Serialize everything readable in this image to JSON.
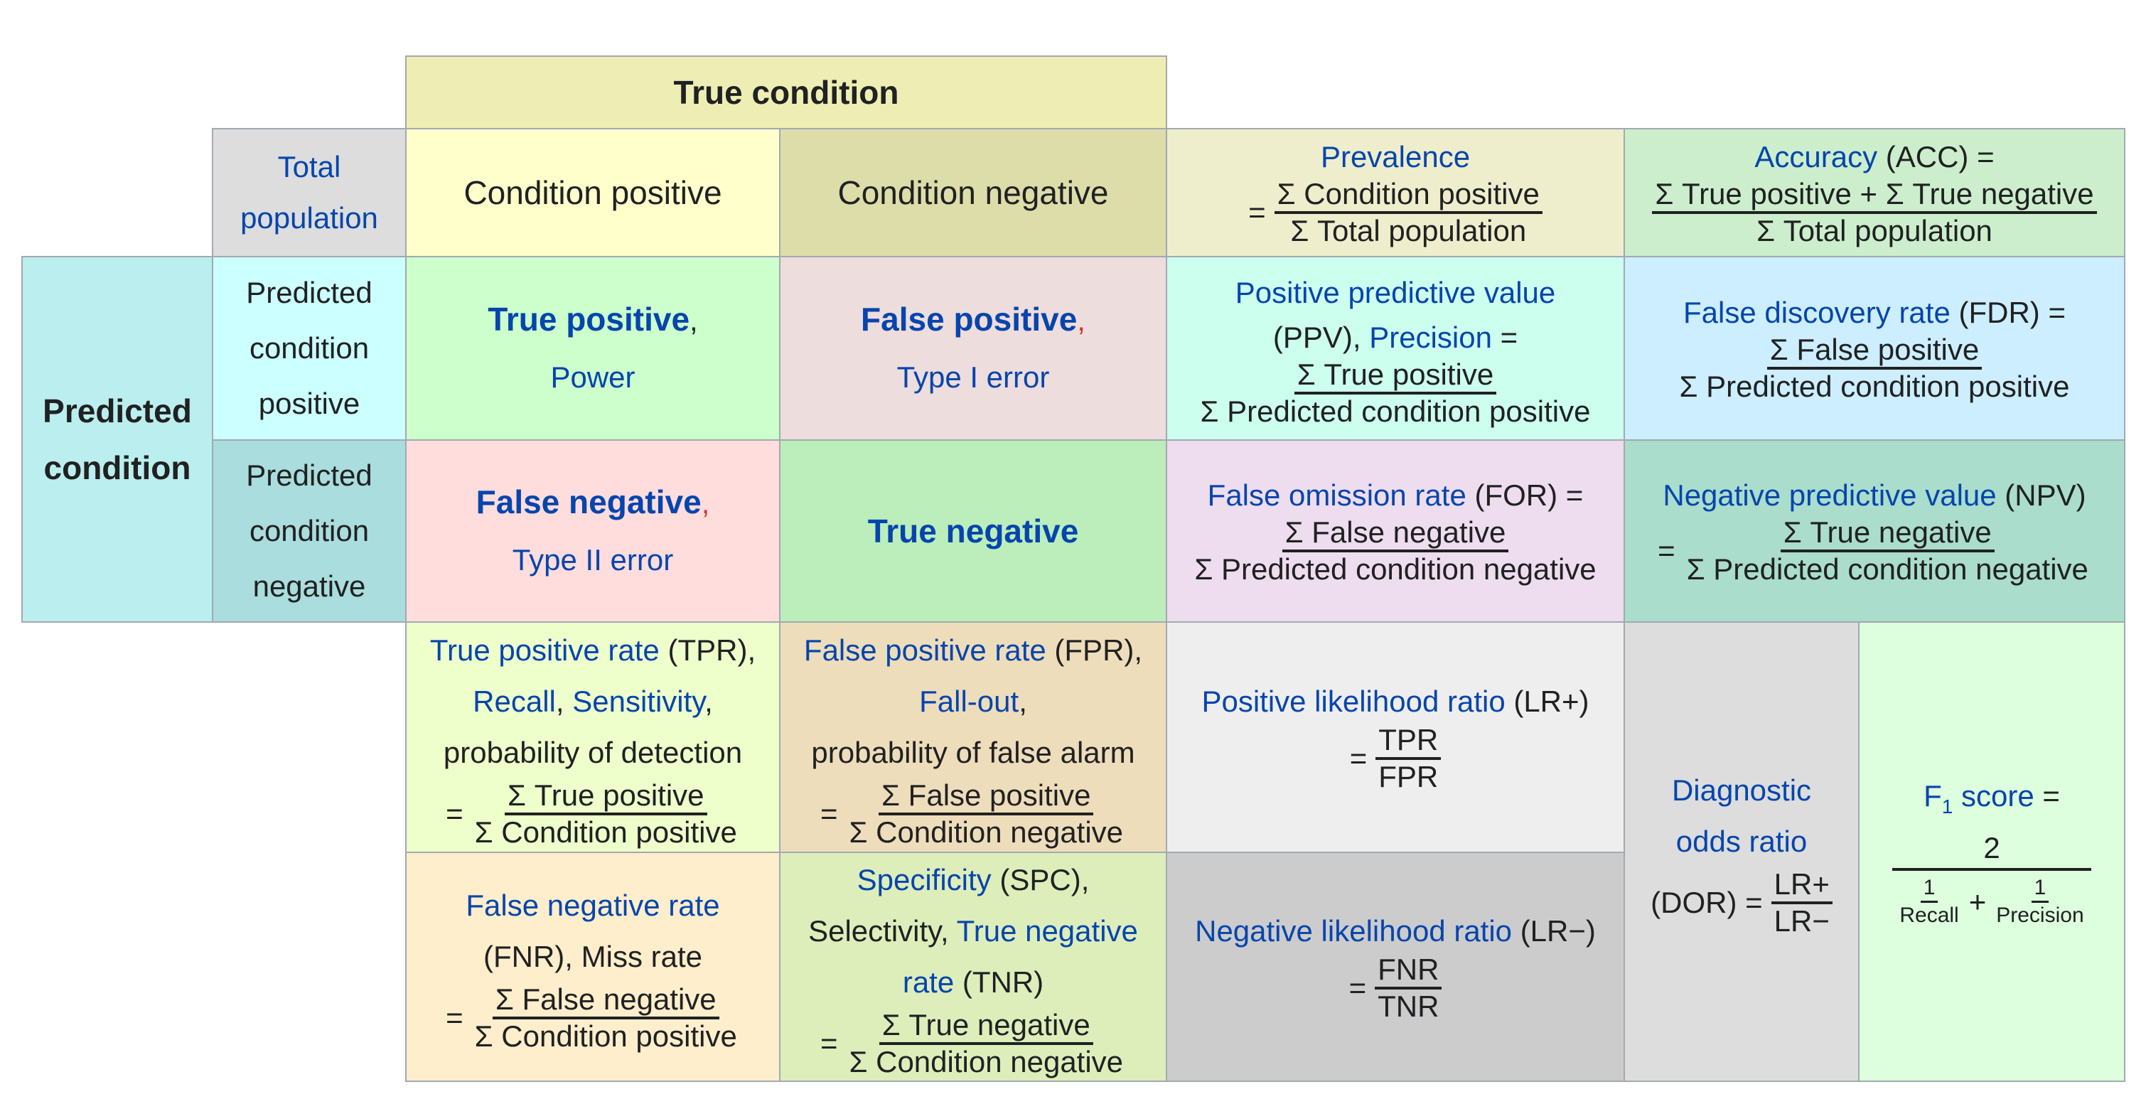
{
  "header": {
    "true_condition": "True condition",
    "total_population": [
      "Total",
      "population"
    ],
    "condition_positive": "Condition positive",
    "condition_negative": "Condition negative",
    "predicted_condition": [
      "Predicted",
      "condition"
    ],
    "predicted_condition_positive": [
      "Predicted",
      "condition",
      "positive"
    ],
    "predicted_condition_negative": [
      "Predicted",
      "condition",
      "negative"
    ]
  },
  "prevalence": {
    "name": "Prevalence",
    "eq": "=",
    "num": "Σ Condition positive",
    "den": "Σ Total population"
  },
  "accuracy": {
    "name": "Accuracy",
    "abbr": " (ACC) =",
    "num": "Σ True positive + Σ True negative",
    "den": "Σ Total population"
  },
  "tp": {
    "name": "True positive",
    "comma": ",",
    "alt": "Power"
  },
  "fp": {
    "name": "False positive",
    "comma": ",",
    "alt": "Type I error"
  },
  "fn": {
    "name": "False negative",
    "comma": ",",
    "alt": "Type II error"
  },
  "tn": {
    "name": "True negative"
  },
  "ppv": {
    "line1": "Positive predictive value",
    "abbr": "(PPV), ",
    "name2": "Precision",
    "eq": " =",
    "num": "Σ True positive",
    "den": "Σ Predicted condition positive"
  },
  "fdr": {
    "name": "False discovery rate",
    "abbr": " (FDR) =",
    "num": "Σ False positive",
    "den": "Σ Predicted condition positive"
  },
  "for": {
    "name": "False omission rate",
    "abbr": " (FOR) =",
    "num": "Σ False negative",
    "den": "Σ Predicted condition negative"
  },
  "npv": {
    "name": "Negative predictive value",
    "abbr": " (NPV)",
    "eq": "=",
    "num": "Σ True negative",
    "den": "Σ Predicted condition negative"
  },
  "tpr": {
    "name": "True positive rate",
    "abbr": " (TPR),",
    "recall": "Recall",
    "sep": ", ",
    "sens": "Sensitivity",
    "comma": ",",
    "desc": "probability of detection",
    "eq": "=",
    "num": "Σ True positive",
    "den": "Σ Condition positive"
  },
  "fpr": {
    "name": "False positive rate",
    "abbr": " (FPR),",
    "fallout": "Fall-out",
    "comma": ",",
    "desc": "probability of false alarm",
    "eq": "=",
    "num": "Σ False positive",
    "den": "Σ Condition negative"
  },
  "fnr": {
    "name": "False negative rate",
    "line2": "(FNR), Miss rate",
    "eq": "=",
    "num": "Σ False negative",
    "den": "Σ Condition positive"
  },
  "spc": {
    "name": "Specificity",
    "abbr": " (SPC),",
    "sel": "Selectivity, ",
    "tnr1": "True negative",
    "tnr2": "rate",
    "abbr2": " (TNR)",
    "eq": "=",
    "num": "Σ True negative",
    "den": "Σ Condition negative"
  },
  "lrp": {
    "name": "Positive likelihood ratio",
    "abbr": " (LR+)",
    "eq": "=",
    "num": "TPR",
    "den": "FPR"
  },
  "lrn": {
    "name": "Negative likelihood ratio",
    "abbr": " (LR−)",
    "eq": "=",
    "num": "FNR",
    "den": "TNR"
  },
  "dor": {
    "line1": "Diagnostic",
    "line2": "odds ratio",
    "abbr": "(DOR) =",
    "num": "LR+",
    "den": "LR−"
  },
  "f1": {
    "name_main": "F",
    "name_sub": "1",
    "name_rest": " score",
    "eq": " =",
    "num": "2",
    "n1": "1",
    "d1": "Recall",
    "plus": "+",
    "n2": "1",
    "d2": "Precision"
  },
  "colors": {
    "true_condition": "#eeeeb4",
    "total_pop": "#dddddd",
    "cond_pos": "#ffffcc",
    "cond_neg": "#ddddaa",
    "prevalence": "#eeeecc",
    "accuracy": "#cceecc",
    "pred_cond": "#bbeeee",
    "pred_pos": "#ccffff",
    "pred_neg": "#aadddd",
    "tp": "#ccffcc",
    "fp": "#eedddd",
    "fn": "#ffdddd",
    "tn": "#bbeebb",
    "ppv": "#ccffee",
    "fdr": "#cceeff",
    "for": "#eeddee",
    "npv": "#aaddcc",
    "tpr": "#eeffcc",
    "fpr": "#eeddbb",
    "fnr": "#ffeecc",
    "spc": "#ddeebb",
    "lrp": "#eeeeee",
    "lrn": "#cccccc",
    "dor": "#dddddd",
    "f1": "#ddffdd"
  }
}
